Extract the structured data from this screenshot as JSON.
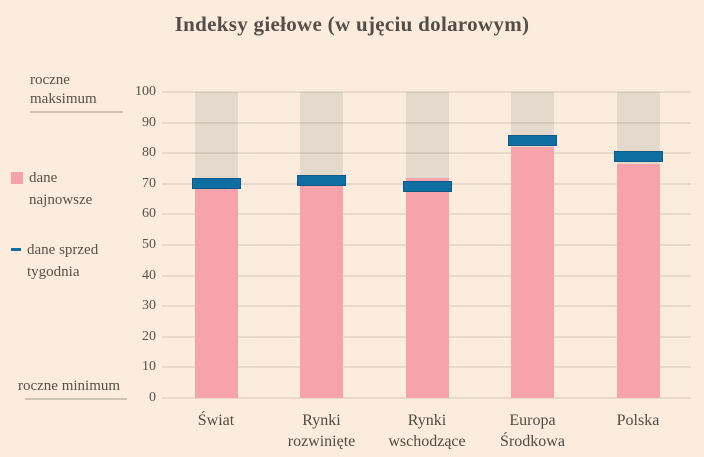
{
  "title": "Indeksy giełowe (w ujęciu dolarowym)",
  "annotations": {
    "max_label": "roczne maksimum",
    "min_label": "roczne minimum"
  },
  "legend": {
    "latest": {
      "label": "dane najnowsze",
      "swatch": "pink-square",
      "color": "#f6a3ab"
    },
    "week_ago": {
      "label": "dane sprzed tygodnia",
      "swatch": "blue-dash",
      "color": "#0f6fa2"
    }
  },
  "colors": {
    "background": "#fbecdd",
    "range_bar": "#e3d9cc",
    "latest_bar": "#f6a3ab",
    "week_marker": "#0f6fa2",
    "week_marker_border": "#0c5a85",
    "title_text": "#534e48",
    "label_text": "#57514a"
  },
  "chart_data": {
    "type": "bar",
    "title": "Indeksy giełowe (w ujęciu dolarowym)",
    "categories": [
      "Świat",
      "Rynki rozwinięte",
      "Rynki wschodzące",
      "Europa Środkowa",
      "Polska"
    ],
    "series": [
      {
        "name": "dane najnowsze",
        "style": "pink-bar",
        "values": [
          72,
          70,
          72,
          82,
          76.5
        ]
      },
      {
        "name": "dane sprzed tygodnia",
        "style": "blue-dash-marker",
        "values": [
          70,
          71,
          69,
          84,
          79
        ]
      }
    ],
    "range_bars": {
      "description": "szare słupki tła od rocznego minimum do rocznego maksimum",
      "min": 0,
      "max": 100
    },
    "xlabel": "",
    "ylabel": "",
    "ylim": [
      0,
      100
    ],
    "yticks": [
      0,
      10,
      20,
      30,
      40,
      50,
      60,
      70,
      80,
      90,
      100
    ],
    "grid": true,
    "legend_position": "left"
  }
}
